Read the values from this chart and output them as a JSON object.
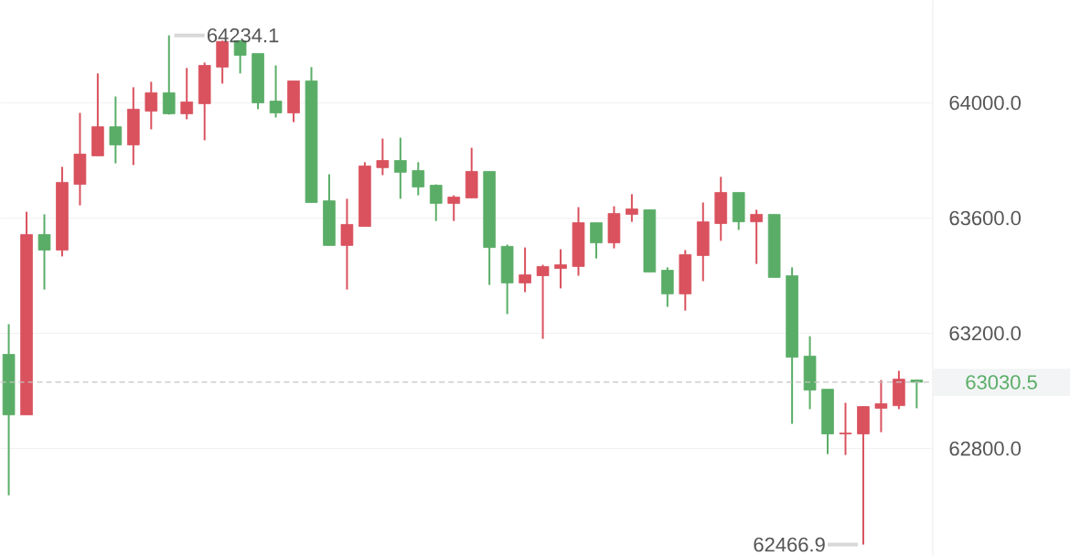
{
  "chart_data": {
    "type": "candlestick",
    "categories": [
      null,
      null,
      null,
      null,
      null,
      null,
      null,
      null,
      null,
      null,
      null,
      null,
      null,
      null,
      null,
      null,
      null,
      null,
      null,
      null,
      null,
      null,
      null,
      null,
      null,
      null,
      null,
      null,
      null,
      null,
      null,
      null,
      null,
      null,
      null,
      null,
      null,
      null,
      null,
      null,
      null,
      null,
      null,
      null,
      null,
      null,
      null,
      null,
      null,
      null,
      null,
      null
    ],
    "ohlc": [
      [
        63127,
        63232,
        62638,
        62917
      ],
      [
        62917,
        63622,
        62917,
        63543
      ],
      [
        63543,
        63613,
        63352,
        63489
      ],
      [
        63489,
        63778,
        63467,
        63724
      ],
      [
        63717,
        63965,
        63644,
        63822
      ],
      [
        63816,
        64102,
        63816,
        63917
      ],
      [
        63917,
        64022,
        63790,
        63854
      ],
      [
        63854,
        64054,
        63784,
        63978
      ],
      [
        63971,
        64073,
        63908,
        64035
      ],
      [
        64035,
        64234.1,
        63959,
        63962
      ],
      [
        63962,
        64121,
        63943,
        64003
      ],
      [
        63997,
        64140,
        63870,
        64130
      ],
      [
        64124,
        64216,
        64067,
        64213
      ],
      [
        64216,
        64216,
        64102,
        64165
      ],
      [
        64171,
        64171,
        63978,
        64000
      ],
      [
        64006,
        64130,
        63949,
        63965
      ],
      [
        63965,
        64076,
        63933,
        64076
      ],
      [
        64076,
        64124,
        63654,
        63654
      ],
      [
        63660,
        63752,
        63505,
        63505
      ],
      [
        63505,
        63667,
        63352,
        63578
      ],
      [
        63571,
        63794,
        63571,
        63781
      ],
      [
        63775,
        63876,
        63749,
        63800
      ],
      [
        63800,
        63879,
        63667,
        63759
      ],
      [
        63765,
        63794,
        63679,
        63708
      ],
      [
        63714,
        63717,
        63590,
        63651
      ],
      [
        63651,
        63679,
        63590,
        63673
      ],
      [
        63670,
        63844,
        63670,
        63762
      ],
      [
        63762,
        63762,
        63368,
        63498
      ],
      [
        63502,
        63508,
        63267,
        63375
      ],
      [
        63375,
        63498,
        63343,
        63403
      ],
      [
        63400,
        63438,
        63181,
        63432
      ],
      [
        63425,
        63492,
        63356,
        63438
      ],
      [
        63432,
        63638,
        63400,
        63584
      ],
      [
        63584,
        63584,
        63460,
        63514
      ],
      [
        63514,
        63641,
        63495,
        63616
      ],
      [
        63613,
        63683,
        63587,
        63632
      ],
      [
        63629,
        63629,
        63413,
        63413
      ],
      [
        63419,
        63429,
        63292,
        63337
      ],
      [
        63337,
        63489,
        63279,
        63473
      ],
      [
        63470,
        63654,
        63381,
        63587
      ],
      [
        63581,
        63743,
        63521,
        63689
      ],
      [
        63689,
        63689,
        63559,
        63587
      ],
      [
        63587,
        63629,
        63441,
        63613
      ],
      [
        63613,
        63613,
        63394,
        63394
      ],
      [
        63400,
        63429,
        62886,
        63117
      ],
      [
        63121,
        63190,
        62937,
        63003
      ],
      [
        63006,
        63006,
        62781,
        62851
      ],
      [
        62851,
        62959,
        62778,
        62854
      ],
      [
        62851,
        62946,
        62466.9,
        62946
      ],
      [
        62940,
        63038,
        62857,
        62956
      ],
      [
        62949,
        63070,
        62937,
        63041
      ],
      [
        63038,
        63038,
        62940,
        63030.5
      ]
    ],
    "colors": [
      "#5aad67",
      "#d9525e",
      "#5aad67",
      "#d9525e",
      "#d9525e",
      "#d9525e",
      "#5aad67",
      "#d9525e",
      "#d9525e",
      "#5aad67",
      "#d9525e",
      "#d9525e",
      "#d9525e",
      "#5aad67",
      "#5aad67",
      "#5aad67",
      "#d9525e",
      "#5aad67",
      "#5aad67",
      "#d9525e",
      "#d9525e",
      "#d9525e",
      "#5aad67",
      "#5aad67",
      "#5aad67",
      "#d9525e",
      "#d9525e",
      "#5aad67",
      "#5aad67",
      "#d9525e",
      "#d9525e",
      "#d9525e",
      "#d9525e",
      "#5aad67",
      "#d9525e",
      "#d9525e",
      "#5aad67",
      "#5aad67",
      "#d9525e",
      "#d9525e",
      "#d9525e",
      "#5aad67",
      "#d9525e",
      "#5aad67",
      "#5aad67",
      "#5aad67",
      "#5aad67",
      "#d9525e",
      "#d9525e",
      "#d9525e",
      "#d9525e",
      "#5aad67"
    ],
    "ylim": [
      62430,
      64355
    ],
    "yticks": [
      {
        "value": 62800,
        "label": "62800.0"
      },
      {
        "value": 63200,
        "label": "63200.0"
      },
      {
        "value": 63600,
        "label": "63600.0"
      },
      {
        "value": 64000,
        "label": "64000.0"
      }
    ],
    "grid": "y",
    "ref_lines": [
      {
        "axis": "y",
        "value": 63030.5,
        "label": "63030.5",
        "color": "#c4c4c4",
        "line_style": "dashed"
      }
    ],
    "annotations": [
      "64234.1",
      "62466.9"
    ]
  }
}
